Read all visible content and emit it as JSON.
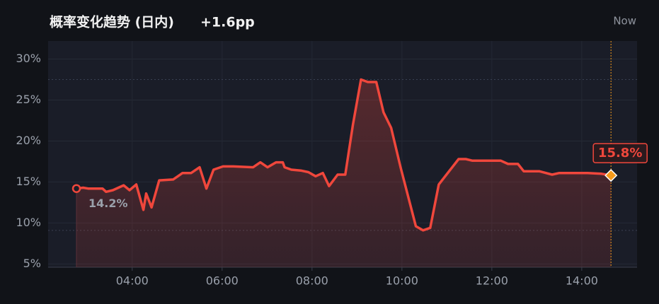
{
  "chart_data": {
    "type": "line",
    "title": "概率变化趋势 (日内)",
    "change": "+1.6pp",
    "now_label": "Now",
    "x": [
      2.76,
      2.91,
      3.02,
      3.34,
      3.42,
      3.57,
      3.81,
      3.94,
      4.09,
      4.25,
      4.31,
      4.43,
      4.6,
      4.91,
      5.12,
      5.31,
      5.5,
      5.65,
      5.81,
      6.02,
      6.25,
      6.69,
      6.85,
      7.01,
      7.2,
      7.35,
      7.39,
      7.54,
      7.75,
      7.92,
      8.08,
      8.24,
      8.38,
      8.57,
      8.74,
      8.91,
      9.09,
      9.24,
      9.43,
      9.59,
      9.76,
      9.97,
      10.31,
      10.47,
      10.63,
      10.82,
      11.26,
      11.42,
      11.57,
      12.2,
      12.36,
      12.58,
      12.71,
      13.06,
      13.34,
      13.5,
      13.81,
      14.13,
      14.44,
      14.65
    ],
    "values": [
      14.2,
      14.3,
      14.2,
      14.2,
      13.8,
      14.0,
      14.6,
      14.0,
      14.7,
      11.6,
      13.6,
      11.9,
      15.2,
      15.3,
      16.1,
      16.1,
      16.8,
      14.2,
      16.5,
      16.9,
      16.9,
      16.8,
      17.4,
      16.8,
      17.4,
      17.4,
      16.8,
      16.5,
      16.4,
      16.2,
      15.7,
      16.1,
      14.5,
      15.9,
      15.9,
      22.0,
      27.5,
      27.2,
      27.2,
      23.5,
      21.6,
      16.8,
      9.6,
      9.1,
      9.4,
      14.7,
      17.8,
      17.8,
      17.6,
      17.6,
      17.2,
      17.2,
      16.3,
      16.3,
      15.9,
      16.1,
      16.1,
      16.1,
      16.0,
      15.8
    ],
    "value_labels": [
      "14.2%",
      null,
      null,
      null,
      null,
      null,
      null,
      null,
      null,
      null,
      null,
      null,
      null,
      null,
      null,
      null,
      null,
      null,
      null,
      null,
      null,
      null,
      null,
      null,
      null,
      null,
      null,
      null,
      null,
      null,
      null,
      null,
      null,
      null,
      null,
      null,
      null,
      null,
      null,
      null,
      null,
      null,
      null,
      null,
      null,
      null,
      null,
      null,
      null,
      null,
      null,
      null,
      null,
      null,
      null,
      null,
      null,
      null,
      null,
      "15.8%"
    ],
    "color": "#f0473c",
    "marker_color": "#f59a1b",
    "xlim": [
      2.13,
      15.23
    ],
    "xticks": [
      {
        "value": 4,
        "label": "04:00"
      },
      {
        "value": 6,
        "label": "06:00"
      },
      {
        "value": 8,
        "label": "08:00"
      },
      {
        "value": 10,
        "label": "10:00"
      },
      {
        "value": 12,
        "label": "12:00"
      },
      {
        "value": 14,
        "label": "14:00"
      }
    ],
    "ylim": [
      4.6,
      32.2
    ],
    "yticks": [
      {
        "value": 5,
        "label": "5%"
      },
      {
        "value": 10,
        "label": "10%"
      },
      {
        "value": 15,
        "label": "15%"
      },
      {
        "value": 20,
        "label": "20%"
      },
      {
        "value": 25,
        "label": "25%"
      },
      {
        "value": 30,
        "label": "30%"
      }
    ],
    "grid": true
  }
}
